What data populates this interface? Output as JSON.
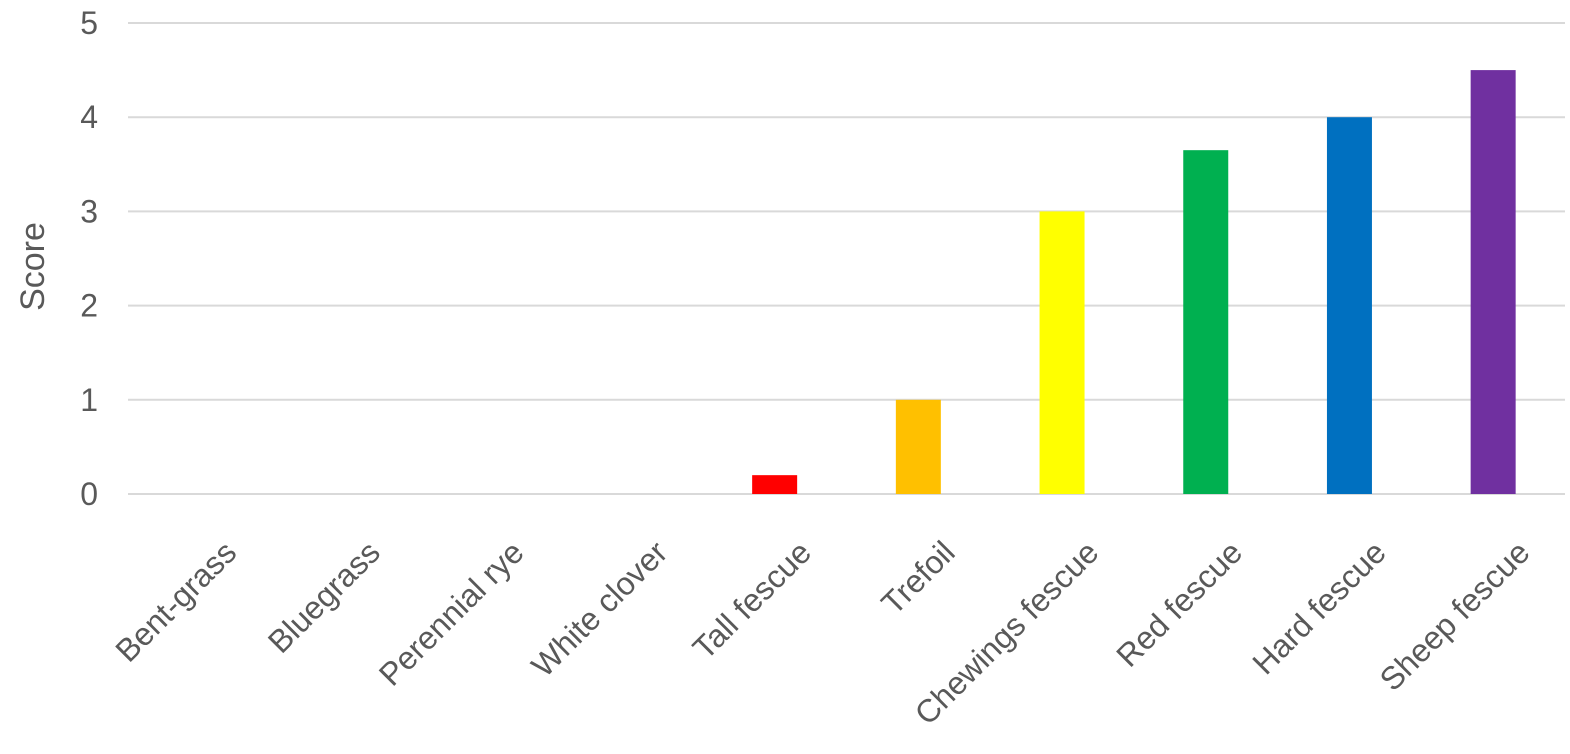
{
  "chart_data": {
    "type": "bar",
    "title": "",
    "xlabel": "",
    "ylabel": "Score",
    "ylim": [
      0,
      5
    ],
    "yticks": [
      "0",
      "1",
      "2",
      "3",
      "4",
      "5"
    ],
    "grid": true,
    "legend": "none",
    "categories": [
      "Bent-grass",
      "Bluegrass",
      "Perennial rye",
      "White clover",
      "Tall fescue",
      "Trefoil",
      "Chewings fescue",
      "Red fescue",
      "Hard fescue",
      "Sheep fescue"
    ],
    "values": [
      0,
      0,
      0,
      0,
      0.2,
      1,
      3,
      3.65,
      4,
      4.5
    ],
    "colors": [
      "#4472C4",
      "#4472C4",
      "#4472C4",
      "#4472C4",
      "#FF0000",
      "#FFC000",
      "#FFFF00",
      "#00B050",
      "#0070C0",
      "#7030A0"
    ],
    "grid_color": "#D9D9D9",
    "text_color": "#595959"
  }
}
